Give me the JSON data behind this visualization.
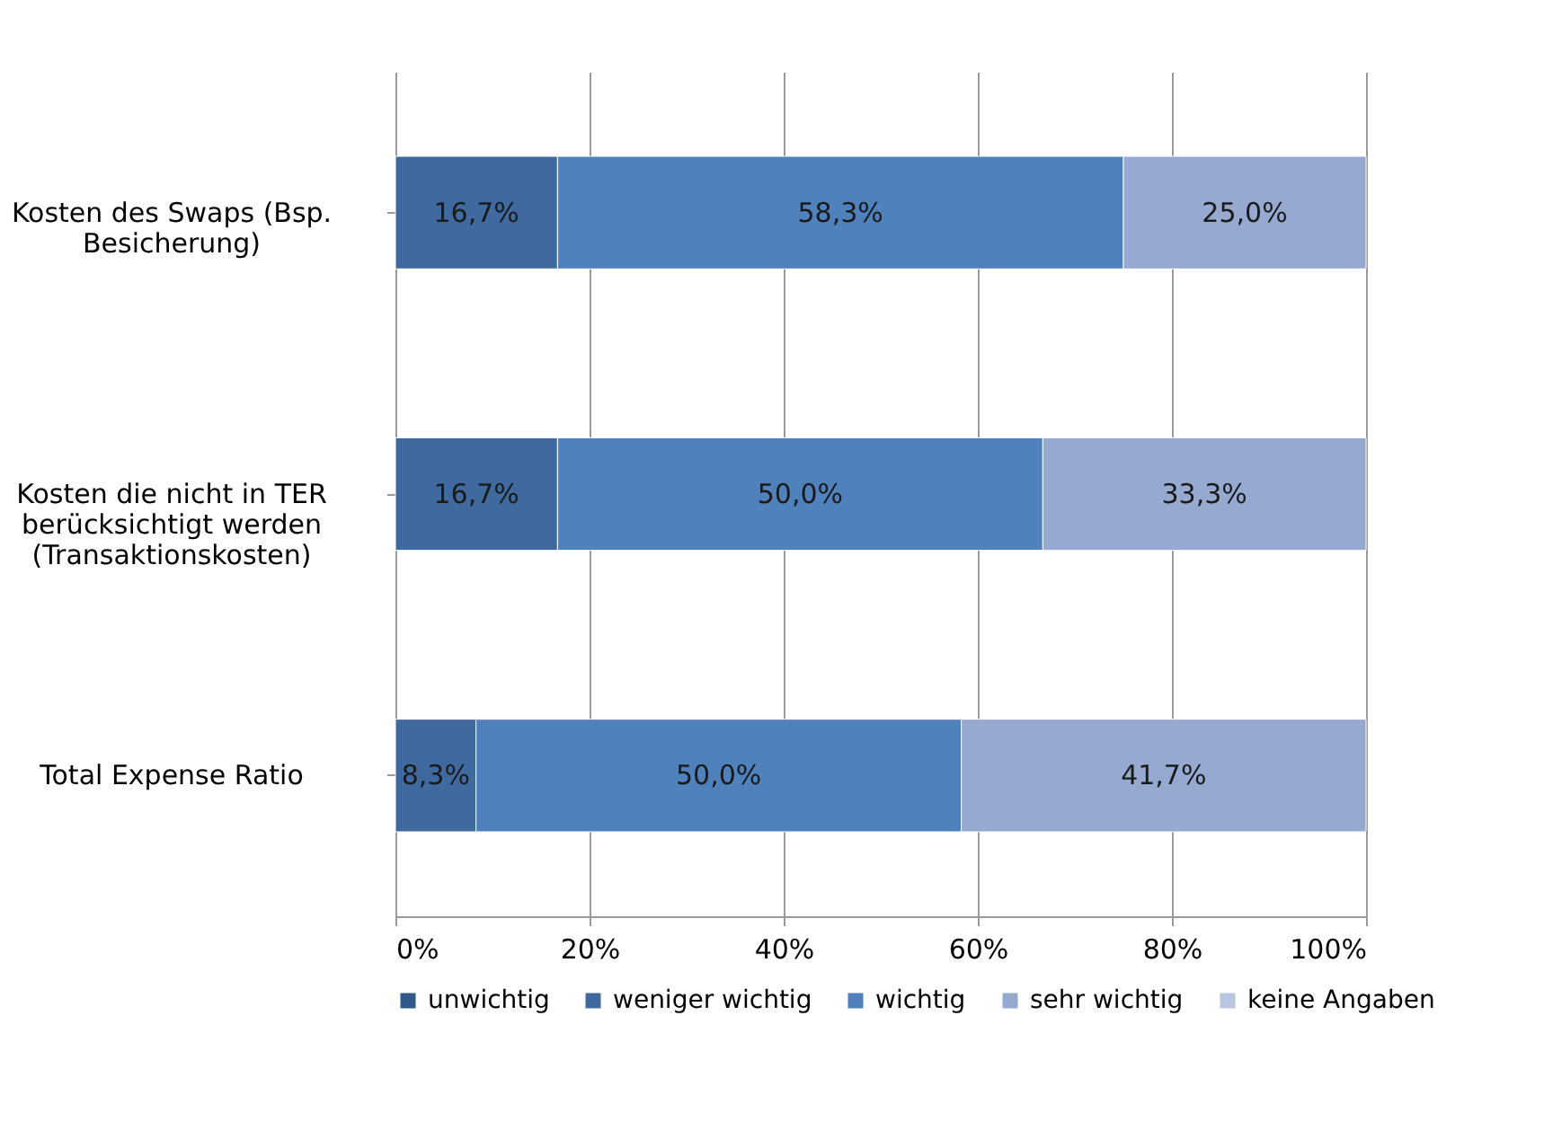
{
  "chart_data": {
    "type": "bar",
    "orientation": "horizontal",
    "stacked": true,
    "categories": [
      "Kosten des Swaps (Bsp. Besicherung)",
      "Kosten die nicht in TER berücksichtigt werden (Transaktionskosten)",
      "Total Expense Ratio"
    ],
    "series": [
      {
        "name": "unwichtig",
        "color": "#2f5a8c",
        "values": [
          null,
          null,
          null
        ]
      },
      {
        "name": "weniger wichtig",
        "color": "#3e6aa0",
        "values": [
          16.7,
          16.7,
          8.3
        ],
        "value_labels": [
          "16,7%",
          "16,7%",
          "8,3%"
        ]
      },
      {
        "name": "wichtig",
        "color": "#4f81bd",
        "values": [
          58.3,
          50.0,
          50.0
        ],
        "value_labels": [
          "58,3%",
          "50,0%",
          "50,0%"
        ]
      },
      {
        "name": "sehr wichtig",
        "color": "#95a9d1",
        "values": [
          25.0,
          33.3,
          41.7
        ],
        "value_labels": [
          "25,0%",
          "33,3%",
          "41,7%"
        ]
      },
      {
        "name": "keine Angaben",
        "color": "#b8c6e0",
        "values": [
          null,
          null,
          null
        ]
      }
    ],
    "xlim": [
      0,
      100
    ],
    "xticks": [
      {
        "value": 0,
        "label": "0%"
      },
      {
        "value": 20,
        "label": "20%"
      },
      {
        "value": 40,
        "label": "40%"
      },
      {
        "value": 60,
        "label": "60%"
      },
      {
        "value": 80,
        "label": "80%"
      },
      {
        "value": 100,
        "label": "100%"
      }
    ],
    "grid": "x",
    "legend": "bottom"
  }
}
